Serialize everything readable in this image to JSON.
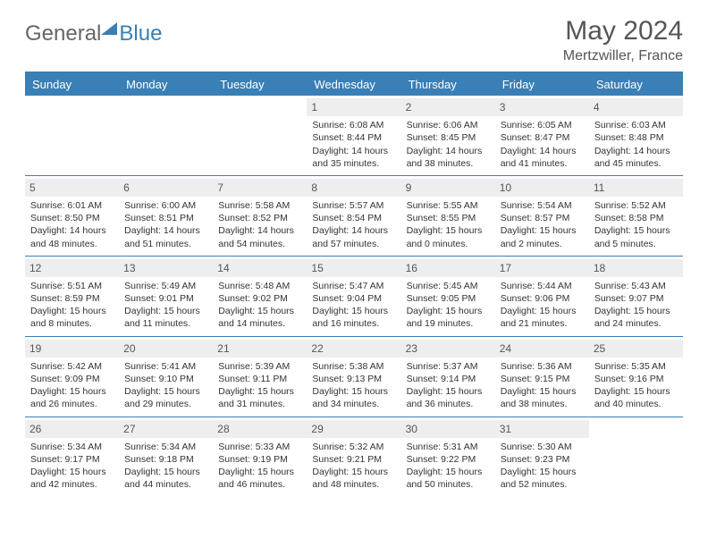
{
  "logo": {
    "general": "General",
    "blue": "Blue"
  },
  "title": "May 2024",
  "location": "Mertzwiller, France",
  "colors": {
    "accent": "#3a7fb5",
    "header_text": "#ffffff",
    "daybar_bg": "#eeeeee",
    "body_text": "#333333",
    "title_text": "#555555"
  },
  "days_of_week": [
    "Sunday",
    "Monday",
    "Tuesday",
    "Wednesday",
    "Thursday",
    "Friday",
    "Saturday"
  ],
  "weeks": [
    [
      {
        "day": "",
        "sunrise": "",
        "sunset": "",
        "daylight1": "",
        "daylight2": "",
        "empty": true
      },
      {
        "day": "",
        "sunrise": "",
        "sunset": "",
        "daylight1": "",
        "daylight2": "",
        "empty": true
      },
      {
        "day": "",
        "sunrise": "",
        "sunset": "",
        "daylight1": "",
        "daylight2": "",
        "empty": true
      },
      {
        "day": "1",
        "sunrise": "Sunrise: 6:08 AM",
        "sunset": "Sunset: 8:44 PM",
        "daylight1": "Daylight: 14 hours",
        "daylight2": "and 35 minutes."
      },
      {
        "day": "2",
        "sunrise": "Sunrise: 6:06 AM",
        "sunset": "Sunset: 8:45 PM",
        "daylight1": "Daylight: 14 hours",
        "daylight2": "and 38 minutes."
      },
      {
        "day": "3",
        "sunrise": "Sunrise: 6:05 AM",
        "sunset": "Sunset: 8:47 PM",
        "daylight1": "Daylight: 14 hours",
        "daylight2": "and 41 minutes."
      },
      {
        "day": "4",
        "sunrise": "Sunrise: 6:03 AM",
        "sunset": "Sunset: 8:48 PM",
        "daylight1": "Daylight: 14 hours",
        "daylight2": "and 45 minutes."
      }
    ],
    [
      {
        "day": "5",
        "sunrise": "Sunrise: 6:01 AM",
        "sunset": "Sunset: 8:50 PM",
        "daylight1": "Daylight: 14 hours",
        "daylight2": "and 48 minutes."
      },
      {
        "day": "6",
        "sunrise": "Sunrise: 6:00 AM",
        "sunset": "Sunset: 8:51 PM",
        "daylight1": "Daylight: 14 hours",
        "daylight2": "and 51 minutes."
      },
      {
        "day": "7",
        "sunrise": "Sunrise: 5:58 AM",
        "sunset": "Sunset: 8:52 PM",
        "daylight1": "Daylight: 14 hours",
        "daylight2": "and 54 minutes."
      },
      {
        "day": "8",
        "sunrise": "Sunrise: 5:57 AM",
        "sunset": "Sunset: 8:54 PM",
        "daylight1": "Daylight: 14 hours",
        "daylight2": "and 57 minutes."
      },
      {
        "day": "9",
        "sunrise": "Sunrise: 5:55 AM",
        "sunset": "Sunset: 8:55 PM",
        "daylight1": "Daylight: 15 hours",
        "daylight2": "and 0 minutes."
      },
      {
        "day": "10",
        "sunrise": "Sunrise: 5:54 AM",
        "sunset": "Sunset: 8:57 PM",
        "daylight1": "Daylight: 15 hours",
        "daylight2": "and 2 minutes."
      },
      {
        "day": "11",
        "sunrise": "Sunrise: 5:52 AM",
        "sunset": "Sunset: 8:58 PM",
        "daylight1": "Daylight: 15 hours",
        "daylight2": "and 5 minutes."
      }
    ],
    [
      {
        "day": "12",
        "sunrise": "Sunrise: 5:51 AM",
        "sunset": "Sunset: 8:59 PM",
        "daylight1": "Daylight: 15 hours",
        "daylight2": "and 8 minutes."
      },
      {
        "day": "13",
        "sunrise": "Sunrise: 5:49 AM",
        "sunset": "Sunset: 9:01 PM",
        "daylight1": "Daylight: 15 hours",
        "daylight2": "and 11 minutes."
      },
      {
        "day": "14",
        "sunrise": "Sunrise: 5:48 AM",
        "sunset": "Sunset: 9:02 PM",
        "daylight1": "Daylight: 15 hours",
        "daylight2": "and 14 minutes."
      },
      {
        "day": "15",
        "sunrise": "Sunrise: 5:47 AM",
        "sunset": "Sunset: 9:04 PM",
        "daylight1": "Daylight: 15 hours",
        "daylight2": "and 16 minutes."
      },
      {
        "day": "16",
        "sunrise": "Sunrise: 5:45 AM",
        "sunset": "Sunset: 9:05 PM",
        "daylight1": "Daylight: 15 hours",
        "daylight2": "and 19 minutes."
      },
      {
        "day": "17",
        "sunrise": "Sunrise: 5:44 AM",
        "sunset": "Sunset: 9:06 PM",
        "daylight1": "Daylight: 15 hours",
        "daylight2": "and 21 minutes."
      },
      {
        "day": "18",
        "sunrise": "Sunrise: 5:43 AM",
        "sunset": "Sunset: 9:07 PM",
        "daylight1": "Daylight: 15 hours",
        "daylight2": "and 24 minutes."
      }
    ],
    [
      {
        "day": "19",
        "sunrise": "Sunrise: 5:42 AM",
        "sunset": "Sunset: 9:09 PM",
        "daylight1": "Daylight: 15 hours",
        "daylight2": "and 26 minutes."
      },
      {
        "day": "20",
        "sunrise": "Sunrise: 5:41 AM",
        "sunset": "Sunset: 9:10 PM",
        "daylight1": "Daylight: 15 hours",
        "daylight2": "and 29 minutes."
      },
      {
        "day": "21",
        "sunrise": "Sunrise: 5:39 AM",
        "sunset": "Sunset: 9:11 PM",
        "daylight1": "Daylight: 15 hours",
        "daylight2": "and 31 minutes."
      },
      {
        "day": "22",
        "sunrise": "Sunrise: 5:38 AM",
        "sunset": "Sunset: 9:13 PM",
        "daylight1": "Daylight: 15 hours",
        "daylight2": "and 34 minutes."
      },
      {
        "day": "23",
        "sunrise": "Sunrise: 5:37 AM",
        "sunset": "Sunset: 9:14 PM",
        "daylight1": "Daylight: 15 hours",
        "daylight2": "and 36 minutes."
      },
      {
        "day": "24",
        "sunrise": "Sunrise: 5:36 AM",
        "sunset": "Sunset: 9:15 PM",
        "daylight1": "Daylight: 15 hours",
        "daylight2": "and 38 minutes."
      },
      {
        "day": "25",
        "sunrise": "Sunrise: 5:35 AM",
        "sunset": "Sunset: 9:16 PM",
        "daylight1": "Daylight: 15 hours",
        "daylight2": "and 40 minutes."
      }
    ],
    [
      {
        "day": "26",
        "sunrise": "Sunrise: 5:34 AM",
        "sunset": "Sunset: 9:17 PM",
        "daylight1": "Daylight: 15 hours",
        "daylight2": "and 42 minutes."
      },
      {
        "day": "27",
        "sunrise": "Sunrise: 5:34 AM",
        "sunset": "Sunset: 9:18 PM",
        "daylight1": "Daylight: 15 hours",
        "daylight2": "and 44 minutes."
      },
      {
        "day": "28",
        "sunrise": "Sunrise: 5:33 AM",
        "sunset": "Sunset: 9:19 PM",
        "daylight1": "Daylight: 15 hours",
        "daylight2": "and 46 minutes."
      },
      {
        "day": "29",
        "sunrise": "Sunrise: 5:32 AM",
        "sunset": "Sunset: 9:21 PM",
        "daylight1": "Daylight: 15 hours",
        "daylight2": "and 48 minutes."
      },
      {
        "day": "30",
        "sunrise": "Sunrise: 5:31 AM",
        "sunset": "Sunset: 9:22 PM",
        "daylight1": "Daylight: 15 hours",
        "daylight2": "and 50 minutes."
      },
      {
        "day": "31",
        "sunrise": "Sunrise: 5:30 AM",
        "sunset": "Sunset: 9:23 PM",
        "daylight1": "Daylight: 15 hours",
        "daylight2": "and 52 minutes."
      },
      {
        "day": "",
        "sunrise": "",
        "sunset": "",
        "daylight1": "",
        "daylight2": "",
        "empty": true
      }
    ]
  ]
}
